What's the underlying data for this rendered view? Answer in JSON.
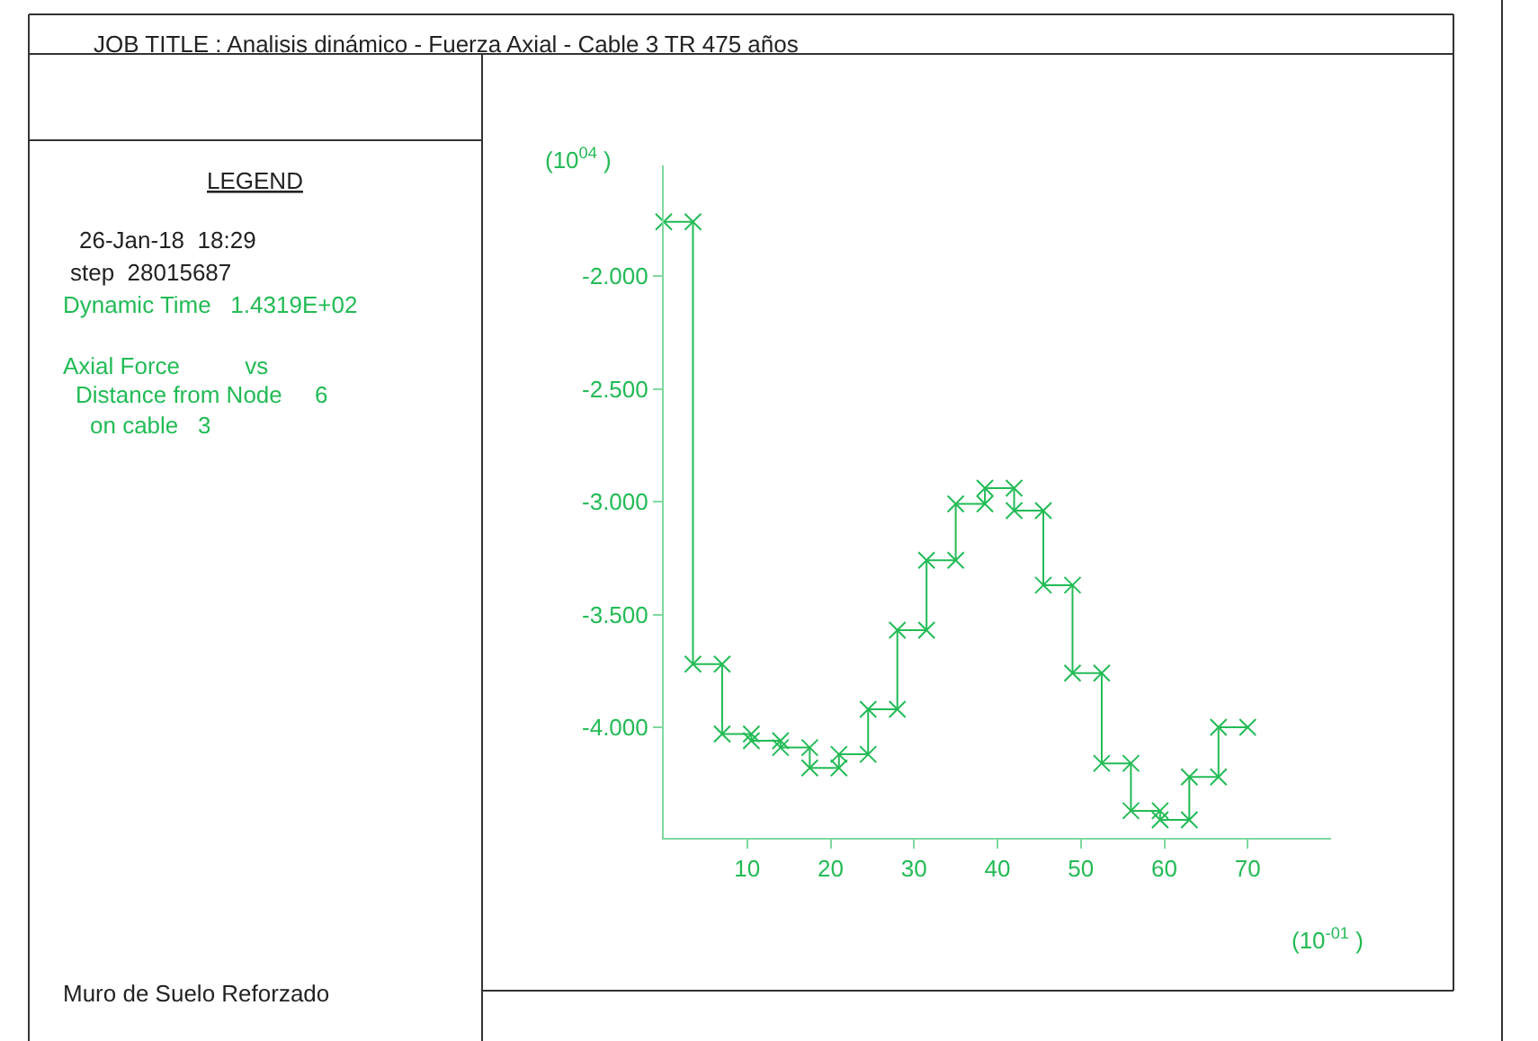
{
  "chart_data": {
    "type": "line",
    "marker": "cross",
    "line_style": "solid",
    "grid": false,
    "legend": false,
    "x": [
      0,
      3.5,
      3.5,
      7,
      7,
      10.5,
      10.5,
      14,
      14,
      17.5,
      17.5,
      21,
      21,
      24.5,
      24.5,
      28,
      28,
      31.5,
      31.5,
      35,
      35,
      38.5,
      38.5,
      42,
      42,
      45.5,
      45.5,
      49,
      49,
      52.5,
      52.5,
      56,
      56,
      59.5,
      59.5,
      63,
      63,
      66.5,
      66.5,
      70
    ],
    "series": [
      {
        "color": "#22bb55",
        "values": [
          -1.76,
          -1.76,
          -3.72,
          -3.72,
          -4.03,
          -4.03,
          -4.06,
          -4.06,
          -4.09,
          -4.09,
          -4.18,
          -4.18,
          -4.12,
          -4.12,
          -3.92,
          -3.92,
          -3.57,
          -3.57,
          -3.26,
          -3.26,
          -3.01,
          -3.01,
          -2.94,
          -2.94,
          -3.04,
          -3.04,
          -3.37,
          -3.37,
          -3.76,
          -3.76,
          -4.16,
          -4.16,
          -4.37,
          -4.37,
          -4.41,
          -4.41,
          -4.22,
          -4.22,
          -4.0,
          -4.0
        ]
      }
    ],
    "xlim": [
      0,
      80
    ],
    "ylim": [
      -4.49,
      -1.51
    ],
    "xticks": [
      10,
      20,
      30,
      40,
      50,
      60,
      70
    ],
    "yticks": [
      {
        "value": -2,
        "label": "-2.000"
      },
      {
        "value": -2.5,
        "label": "-2.500"
      },
      {
        "value": -3,
        "label": "-3.000"
      },
      {
        "value": -3.5,
        "label": "-3.500"
      },
      {
        "value": -4,
        "label": "-4.000"
      }
    ],
    "annotations": [
      "JOB TITLE : Analisis dinámico - Fuerza Axial - Cable 3 TR 475 años",
      "LEGEND",
      "26-Jan-18  18:29",
      "step  28015687",
      "Dynamic Time   1.4319E+02",
      "Axial Force          vs",
      "Distance from Node     6",
      "on cable   3",
      "Muro de Suelo Reforzado",
      "(10$^{04}$ )",
      "(10$^{-01}$ )"
    ]
  }
}
